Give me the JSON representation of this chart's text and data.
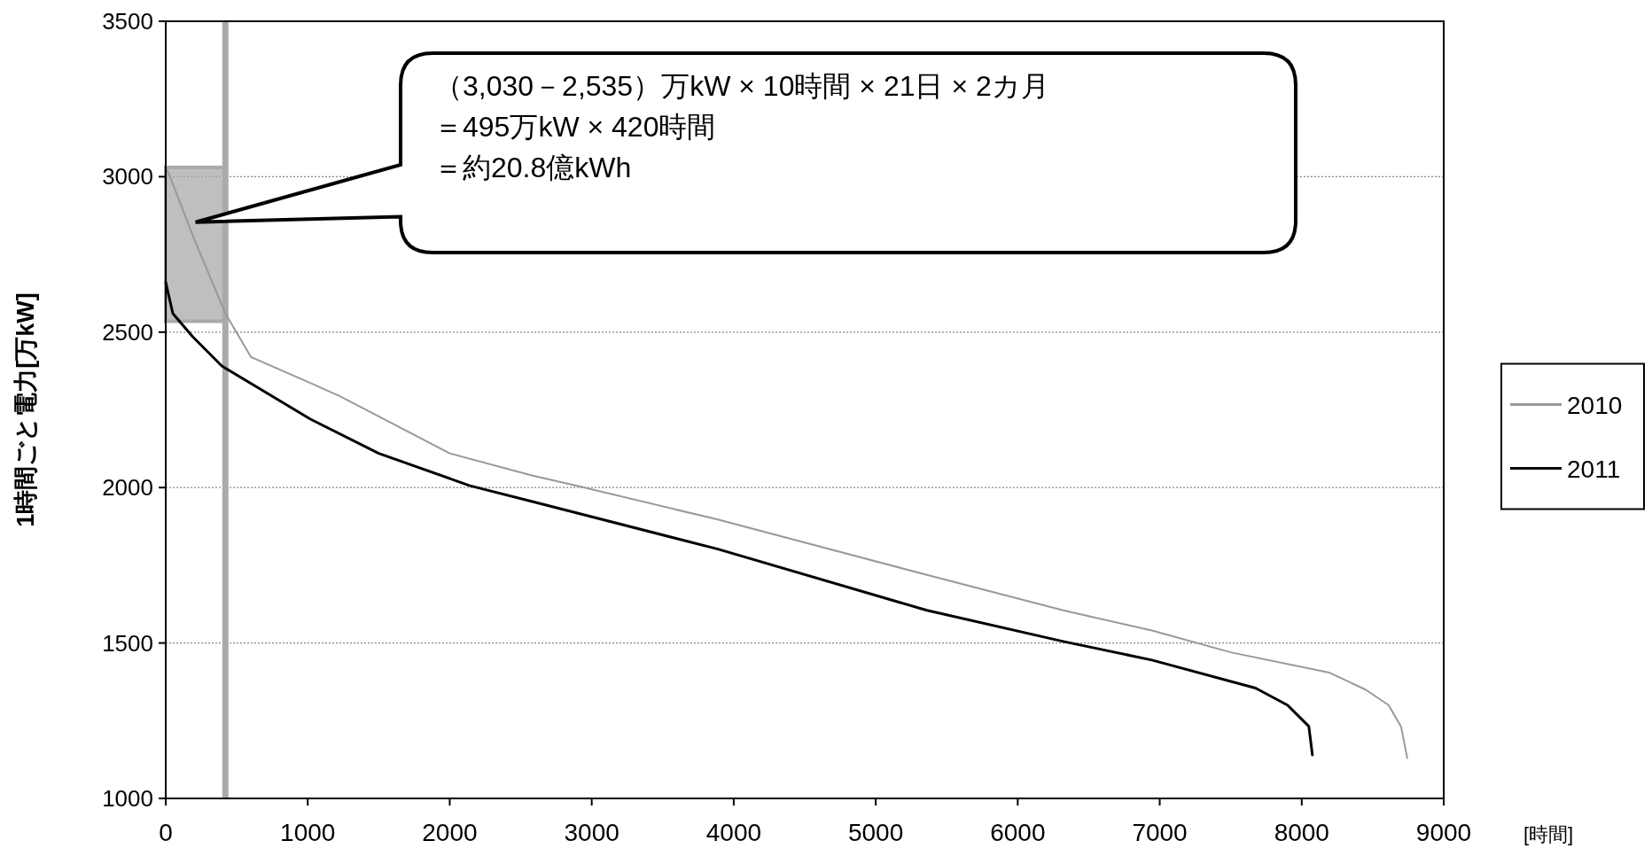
{
  "chart_data": {
    "type": "line",
    "ylabel": "1時間ごと電力[万kW]",
    "xlabel": "[時間]",
    "xlim": [
      0,
      9000
    ],
    "xticks": [
      0,
      1000,
      2000,
      3000,
      4000,
      5000,
      6000,
      7000,
      8000,
      9000
    ],
    "ylim": [
      1000,
      3500
    ],
    "yticks": [
      1000,
      1500,
      2000,
      2500,
      3000,
      3500
    ],
    "grid": "y",
    "legend": "right",
    "series": [
      {
        "name": "2010",
        "color": "#999999",
        "x": [
          0,
          30,
          200,
          420,
          600,
          1000,
          1227,
          2000,
          2578,
          2890,
          3888,
          5361,
          6321,
          6945,
          7500,
          8193,
          8450,
          8612,
          8700,
          8743
        ],
        "values": [
          3030,
          3000,
          2800,
          2560,
          2420,
          2340,
          2294,
          2110,
          2039,
          2006,
          1897,
          1719,
          1605,
          1540,
          1470,
          1405,
          1350,
          1300,
          1230,
          1130
        ]
      },
      {
        "name": "2011",
        "color": "#000000",
        "x": [
          0,
          50,
          190,
          395,
          1019,
          1500,
          2142,
          2582,
          3888,
          5361,
          6321,
          6945,
          7675,
          7900,
          8050,
          8075
        ],
        "values": [
          2660,
          2560,
          2485,
          2391,
          2220,
          2110,
          2006,
          1955,
          1802,
          1605,
          1505,
          1445,
          1355,
          1300,
          1232,
          1140
        ]
      }
    ],
    "ref_lines": [
      {
        "axis": "x",
        "value": 420,
        "color": "#aaaaaa"
      }
    ],
    "bands": [
      {
        "axis": "y",
        "from": 2535,
        "to": 3030,
        "color": "#aaaaaa"
      }
    ],
    "annotations": [
      "（3,030－2,535）万kW × 10時間 × 21日 × 2カ月",
      "＝495万kW × 420時間",
      "＝約20.8億kWh"
    ]
  }
}
